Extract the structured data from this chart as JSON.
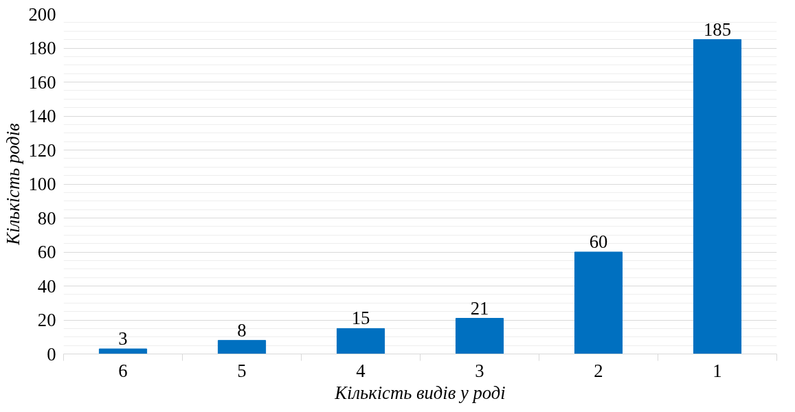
{
  "chart_data": {
    "type": "bar",
    "xlabel": "Кількість видів у роді",
    "ylabel": "Кількість родів",
    "categories": [
      "6",
      "5",
      "4",
      "3",
      "2",
      "1"
    ],
    "values": [
      3,
      8,
      15,
      21,
      60,
      185
    ],
    "color": "#0070c0",
    "ylim": [
      0,
      200
    ],
    "yticks": [
      0,
      20,
      40,
      60,
      80,
      100,
      120,
      140,
      160,
      180,
      200
    ],
    "grid": "y",
    "data_labels": true
  }
}
